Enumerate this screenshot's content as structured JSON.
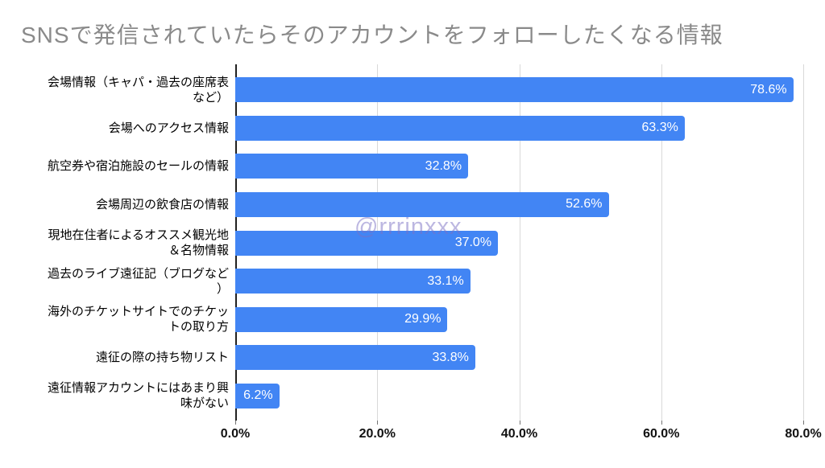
{
  "header": {
    "title": "SNSで発信されていたらそのアカウントをフォローしたくなる情報"
  },
  "watermark": {
    "text": "@rrrinxxx"
  },
  "chart_data": {
    "type": "bar",
    "orientation": "horizontal",
    "title": "SNSで発信されていたらそのアカウントをフォローしたくなる情報",
    "categories": [
      "会場情報（キャパ・過去の座席表など）",
      "会場へのアクセス情報",
      "航空券や宿泊施設のセールの情報",
      "会場周辺の飲食店の情報",
      "現地在住者によるオススメ観光地＆名物情報",
      "過去のライブ遠征記（ブログなど）",
      "海外のチケットサイトでのチケットの取り方",
      "遠征の際の持ち物リスト",
      "遠征情報アカウントにはあまり興味がない"
    ],
    "categories_wrapped": [
      [
        "会場情報（キャパ・過去の座席表",
        "など）"
      ],
      [
        "会場へのアクセス情報"
      ],
      [
        "航空券や宿泊施設のセールの情報"
      ],
      [
        "会場周辺の飲食店の情報"
      ],
      [
        "現地在住者によるオススメ観光地",
        "＆名物情報"
      ],
      [
        "過去のライブ遠征記（ブログなど",
        "）"
      ],
      [
        "海外のチケットサイトでのチケッ",
        "トの取り方"
      ],
      [
        "遠征の際の持ち物リスト"
      ],
      [
        "遠征情報アカウントにはあまり興",
        "味がない"
      ]
    ],
    "values": [
      78.6,
      63.3,
      32.8,
      52.6,
      37.0,
      33.1,
      29.9,
      33.8,
      6.2
    ],
    "value_labels": [
      "78.6%",
      "63.3%",
      "32.8%",
      "52.6%",
      "37.0%",
      "33.1%",
      "29.9%",
      "33.8%",
      "6.2%"
    ],
    "xlabel": "",
    "ylabel": "",
    "xlim": [
      0,
      80
    ],
    "x_ticks": [
      "0.0%",
      "20.0%",
      "40.0%",
      "60.0%",
      "80.0%"
    ],
    "grid": true,
    "legend": "none",
    "colors": {
      "bar": "#4285f4",
      "value_label": "#ffffff",
      "grid": "#d9d9d9",
      "axis": "#212121",
      "title": "#8a8a8a",
      "category_label": "#000000",
      "tick_label": "#111111",
      "watermark": "rgba(121,112,196,0.5)"
    }
  }
}
